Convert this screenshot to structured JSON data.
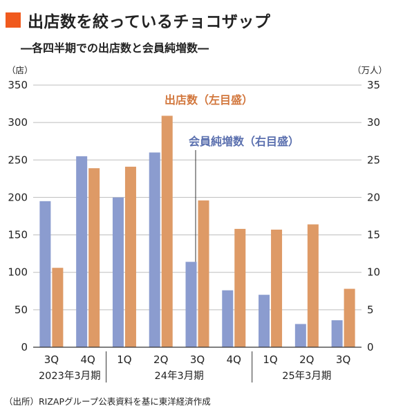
{
  "header": {
    "title": "出店数を絞っているチョコザップ",
    "subtitle": "―各四半期での出店数と会員純増数―"
  },
  "source": "（出所）RIZAPグループ公表資料を基に東洋経済作成",
  "colors": {
    "title_square": "#f05a1e",
    "members": "#8b9ccf",
    "stores": "#de9a66",
    "members_text": "#5a6fae",
    "stores_text": "#d2773d",
    "grid": "#bdbdbd"
  },
  "chart_data": {
    "type": "bar",
    "categories": [
      "3Q",
      "4Q",
      "1Q",
      "2Q",
      "3Q",
      "4Q",
      "1Q",
      "2Q",
      "3Q"
    ],
    "groups": [
      {
        "label": "2023年3月期",
        "count": 2
      },
      {
        "label": "24年3月期",
        "count": 4
      },
      {
        "label": "25年3月期",
        "count": 3
      }
    ],
    "series": [
      {
        "name": "会員純増数（右目盛）",
        "axis": "right",
        "values": [
          19.5,
          25.5,
          20,
          26,
          11.4,
          7.6,
          7,
          3.1,
          3.6
        ]
      },
      {
        "name": "出店数（左目盛）",
        "axis": "left",
        "values": [
          106,
          239,
          241,
          309,
          196,
          158,
          157,
          164,
          78
        ]
      }
    ],
    "y_left": {
      "unit": "（店）",
      "min": 0,
      "max": 350,
      "ticks": [
        "0",
        "50",
        "100",
        "150",
        "200",
        "250",
        "300",
        "350"
      ]
    },
    "y_right": {
      "unit": "（万人）",
      "min": 0,
      "max": 35,
      "ticks": [
        "0",
        "5",
        "10",
        "15",
        "20",
        "25",
        "30",
        "35"
      ]
    },
    "grid": true
  }
}
